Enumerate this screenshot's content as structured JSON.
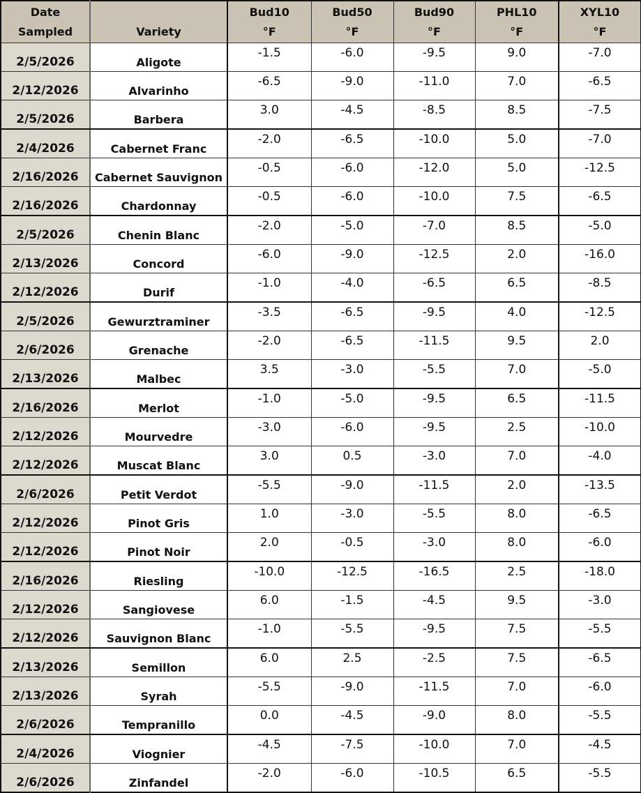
{
  "header": {
    "date": [
      "Date",
      "Sampled"
    ],
    "variety": "Variety",
    "columns": [
      {
        "name": "Bud10",
        "unit": "°F"
      },
      {
        "name": "Bud50",
        "unit": "°F"
      },
      {
        "name": "Bud90",
        "unit": "°F"
      },
      {
        "name": "PHL10",
        "unit": "°F"
      },
      {
        "name": "XYL10",
        "unit": "°F"
      }
    ]
  },
  "rows": [
    [
      "2/5/2026",
      "Aligote",
      "-1.5",
      "-6.0",
      "-9.5",
      "9.0",
      "-7.0"
    ],
    [
      "2/12/2026",
      "Alvarinho",
      "-6.5",
      "-9.0",
      "-11.0",
      "7.0",
      "-6.5"
    ],
    [
      "2/5/2026",
      "Barbera",
      "3.0",
      "-4.5",
      "-8.5",
      "8.5",
      "-7.5"
    ],
    [
      "2/4/2026",
      "Cabernet Franc",
      "-2.0",
      "-6.5",
      "-10.0",
      "5.0",
      "-7.0"
    ],
    [
      "2/16/2026",
      "Cabernet Sauvignon",
      "-0.5",
      "-6.0",
      "-12.0",
      "5.0",
      "-12.5"
    ],
    [
      "2/16/2026",
      "Chardonnay",
      "-0.5",
      "-6.0",
      "-10.0",
      "7.5",
      "-6.5"
    ],
    [
      "2/5/2026",
      "Chenin Blanc",
      "-2.0",
      "-5.0",
      "-7.0",
      "8.5",
      "-5.0"
    ],
    [
      "2/13/2026",
      "Concord",
      "-6.0",
      "-9.0",
      "-12.5",
      "2.0",
      "-16.0"
    ],
    [
      "2/12/2026",
      "Durif",
      "-1.0",
      "-4.0",
      "-6.5",
      "6.5",
      "-8.5"
    ],
    [
      "2/5/2026",
      "Gewurztraminer",
      "-3.5",
      "-6.5",
      "-9.5",
      "4.0",
      "-12.5"
    ],
    [
      "2/6/2026",
      "Grenache",
      "-2.0",
      "-6.5",
      "-11.5",
      "9.5",
      "2.0"
    ],
    [
      "2/13/2026",
      "Malbec",
      "3.5",
      "-3.0",
      "-5.5",
      "7.0",
      "-5.0"
    ],
    [
      "2/16/2026",
      "Merlot",
      "-1.0",
      "-5.0",
      "-9.5",
      "6.5",
      "-11.5"
    ],
    [
      "2/12/2026",
      "Mourvedre",
      "-3.0",
      "-6.0",
      "-9.5",
      "2.5",
      "-10.0"
    ],
    [
      "2/12/2026",
      "Muscat Blanc",
      "3.0",
      "0.5",
      "-3.0",
      "7.0",
      "-4.0"
    ],
    [
      "2/6/2026",
      "Petit Verdot",
      "-5.5",
      "-9.0",
      "-11.5",
      "2.0",
      "-13.5"
    ],
    [
      "2/12/2026",
      "Pinot Gris",
      "1.0",
      "-3.0",
      "-5.5",
      "8.0",
      "-6.5"
    ],
    [
      "2/12/2026",
      "Pinot Noir",
      "2.0",
      "-0.5",
      "-3.0",
      "8.0",
      "-6.0"
    ],
    [
      "2/16/2026",
      "Riesling",
      "-10.0",
      "-12.5",
      "-16.5",
      "2.5",
      "-18.0"
    ],
    [
      "2/12/2026",
      "Sangiovese",
      "6.0",
      "-1.5",
      "-4.5",
      "9.5",
      "-3.0"
    ],
    [
      "2/12/2026",
      "Sauvignon Blanc",
      "-1.0",
      "-5.5",
      "-9.5",
      "7.5",
      "-5.5"
    ],
    [
      "2/13/2026",
      "Semillon",
      "6.0",
      "2.5",
      "-2.5",
      "7.5",
      "-6.5"
    ],
    [
      "2/13/2026",
      "Syrah",
      "-5.5",
      "-9.0",
      "-11.5",
      "7.0",
      "-6.0"
    ],
    [
      "2/6/2026",
      "Tempranillo",
      "0.0",
      "-4.5",
      "-9.0",
      "8.0",
      "-5.5"
    ],
    [
      "2/4/2026",
      "Viognier",
      "-4.5",
      "-7.5",
      "-10.0",
      "7.0",
      "-4.5"
    ],
    [
      "2/6/2026",
      "Zinfandel",
      "-2.0",
      "-6.0",
      "-10.5",
      "6.5",
      "-5.5"
    ]
  ],
  "colors": {
    "header_bg": "#CBC3B3",
    "date_col_bg": "#DDD9CE"
  }
}
